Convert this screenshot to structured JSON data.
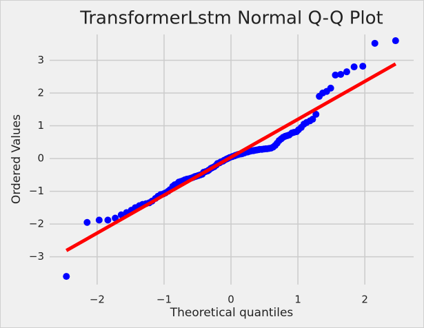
{
  "chart_data": {
    "type": "scatter",
    "title": "TransformerLstm Normal Q-Q Plot",
    "xlabel": "Theoretical quantiles",
    "ylabel": "Ordered Values",
    "color": "#0000ff",
    "grid": true,
    "xlim": [
      -2.71,
      2.73
    ],
    "ylim": [
      -3.85,
      3.79
    ],
    "xticks": [
      {
        "value": -2,
        "label": "−2"
      },
      {
        "value": -1,
        "label": "−1"
      },
      0,
      1,
      2
    ],
    "yticks": [
      {
        "value": -3,
        "label": "−3"
      },
      {
        "value": -2,
        "label": "−2"
      },
      {
        "value": -1,
        "label": "−1"
      },
      0,
      1,
      2,
      3
    ],
    "x": [
      -2.46,
      -2.15,
      -1.97,
      -1.84,
      -1.73,
      -1.64,
      -1.56,
      -1.49,
      -1.43,
      -1.37,
      -1.32,
      -1.27,
      -1.22,
      -1.18,
      -1.13,
      -1.09,
      -1.05,
      -1.01,
      -0.98,
      -0.94,
      -0.91,
      -0.87,
      -0.84,
      -0.81,
      -0.78,
      -0.75,
      -0.72,
      -0.69,
      -0.66,
      -0.63,
      -0.6,
      -0.57,
      -0.54,
      -0.52,
      -0.49,
      -0.46,
      -0.43,
      -0.41,
      -0.38,
      -0.35,
      -0.33,
      -0.3,
      -0.28,
      -0.25,
      -0.22,
      -0.2,
      -0.17,
      -0.15,
      -0.12,
      -0.1,
      -0.07,
      -0.05,
      -0.02,
      0.02,
      0.05,
      0.07,
      0.1,
      0.12,
      0.15,
      0.17,
      0.2,
      0.22,
      0.25,
      0.28,
      0.3,
      0.33,
      0.35,
      0.38,
      0.41,
      0.43,
      0.46,
      0.49,
      0.52,
      0.54,
      0.57,
      0.6,
      0.63,
      0.66,
      0.69,
      0.72,
      0.75,
      0.78,
      0.81,
      0.84,
      0.87,
      0.91,
      0.94,
      0.98,
      1.01,
      1.05,
      1.09,
      1.13,
      1.18,
      1.22,
      1.27,
      1.32,
      1.37,
      1.43,
      1.49,
      1.56,
      1.64,
      1.73,
      1.84,
      1.97,
      2.15,
      2.46
    ],
    "values": [
      -3.6,
      -1.95,
      -1.88,
      -1.88,
      -1.82,
      -1.72,
      -1.65,
      -1.58,
      -1.5,
      -1.44,
      -1.4,
      -1.38,
      -1.35,
      -1.3,
      -1.22,
      -1.15,
      -1.1,
      -1.08,
      -1.05,
      -1.0,
      -0.95,
      -0.85,
      -0.8,
      -0.78,
      -0.72,
      -0.7,
      -0.68,
      -0.65,
      -0.63,
      -0.62,
      -0.6,
      -0.58,
      -0.55,
      -0.54,
      -0.52,
      -0.5,
      -0.48,
      -0.42,
      -0.4,
      -0.38,
      -0.35,
      -0.3,
      -0.28,
      -0.25,
      -0.2,
      -0.15,
      -0.13,
      -0.1,
      -0.08,
      -0.05,
      -0.02,
      0.0,
      0.03,
      0.06,
      0.08,
      0.1,
      0.12,
      0.13,
      0.14,
      0.15,
      0.17,
      0.19,
      0.2,
      0.22,
      0.23,
      0.24,
      0.25,
      0.26,
      0.27,
      0.28,
      0.28,
      0.29,
      0.3,
      0.3,
      0.31,
      0.32,
      0.35,
      0.4,
      0.47,
      0.55,
      0.6,
      0.65,
      0.68,
      0.7,
      0.72,
      0.78,
      0.8,
      0.82,
      0.88,
      0.95,
      1.05,
      1.1,
      1.15,
      1.2,
      1.35,
      1.9,
      2.0,
      2.05,
      2.15,
      2.55,
      2.57,
      2.65,
      2.8,
      2.82,
      3.52,
      3.6
    ],
    "fit_line": {
      "x": [
        -2.46,
        2.46
      ],
      "values": [
        -2.81,
        2.89
      ],
      "color": "#ff0000"
    }
  }
}
